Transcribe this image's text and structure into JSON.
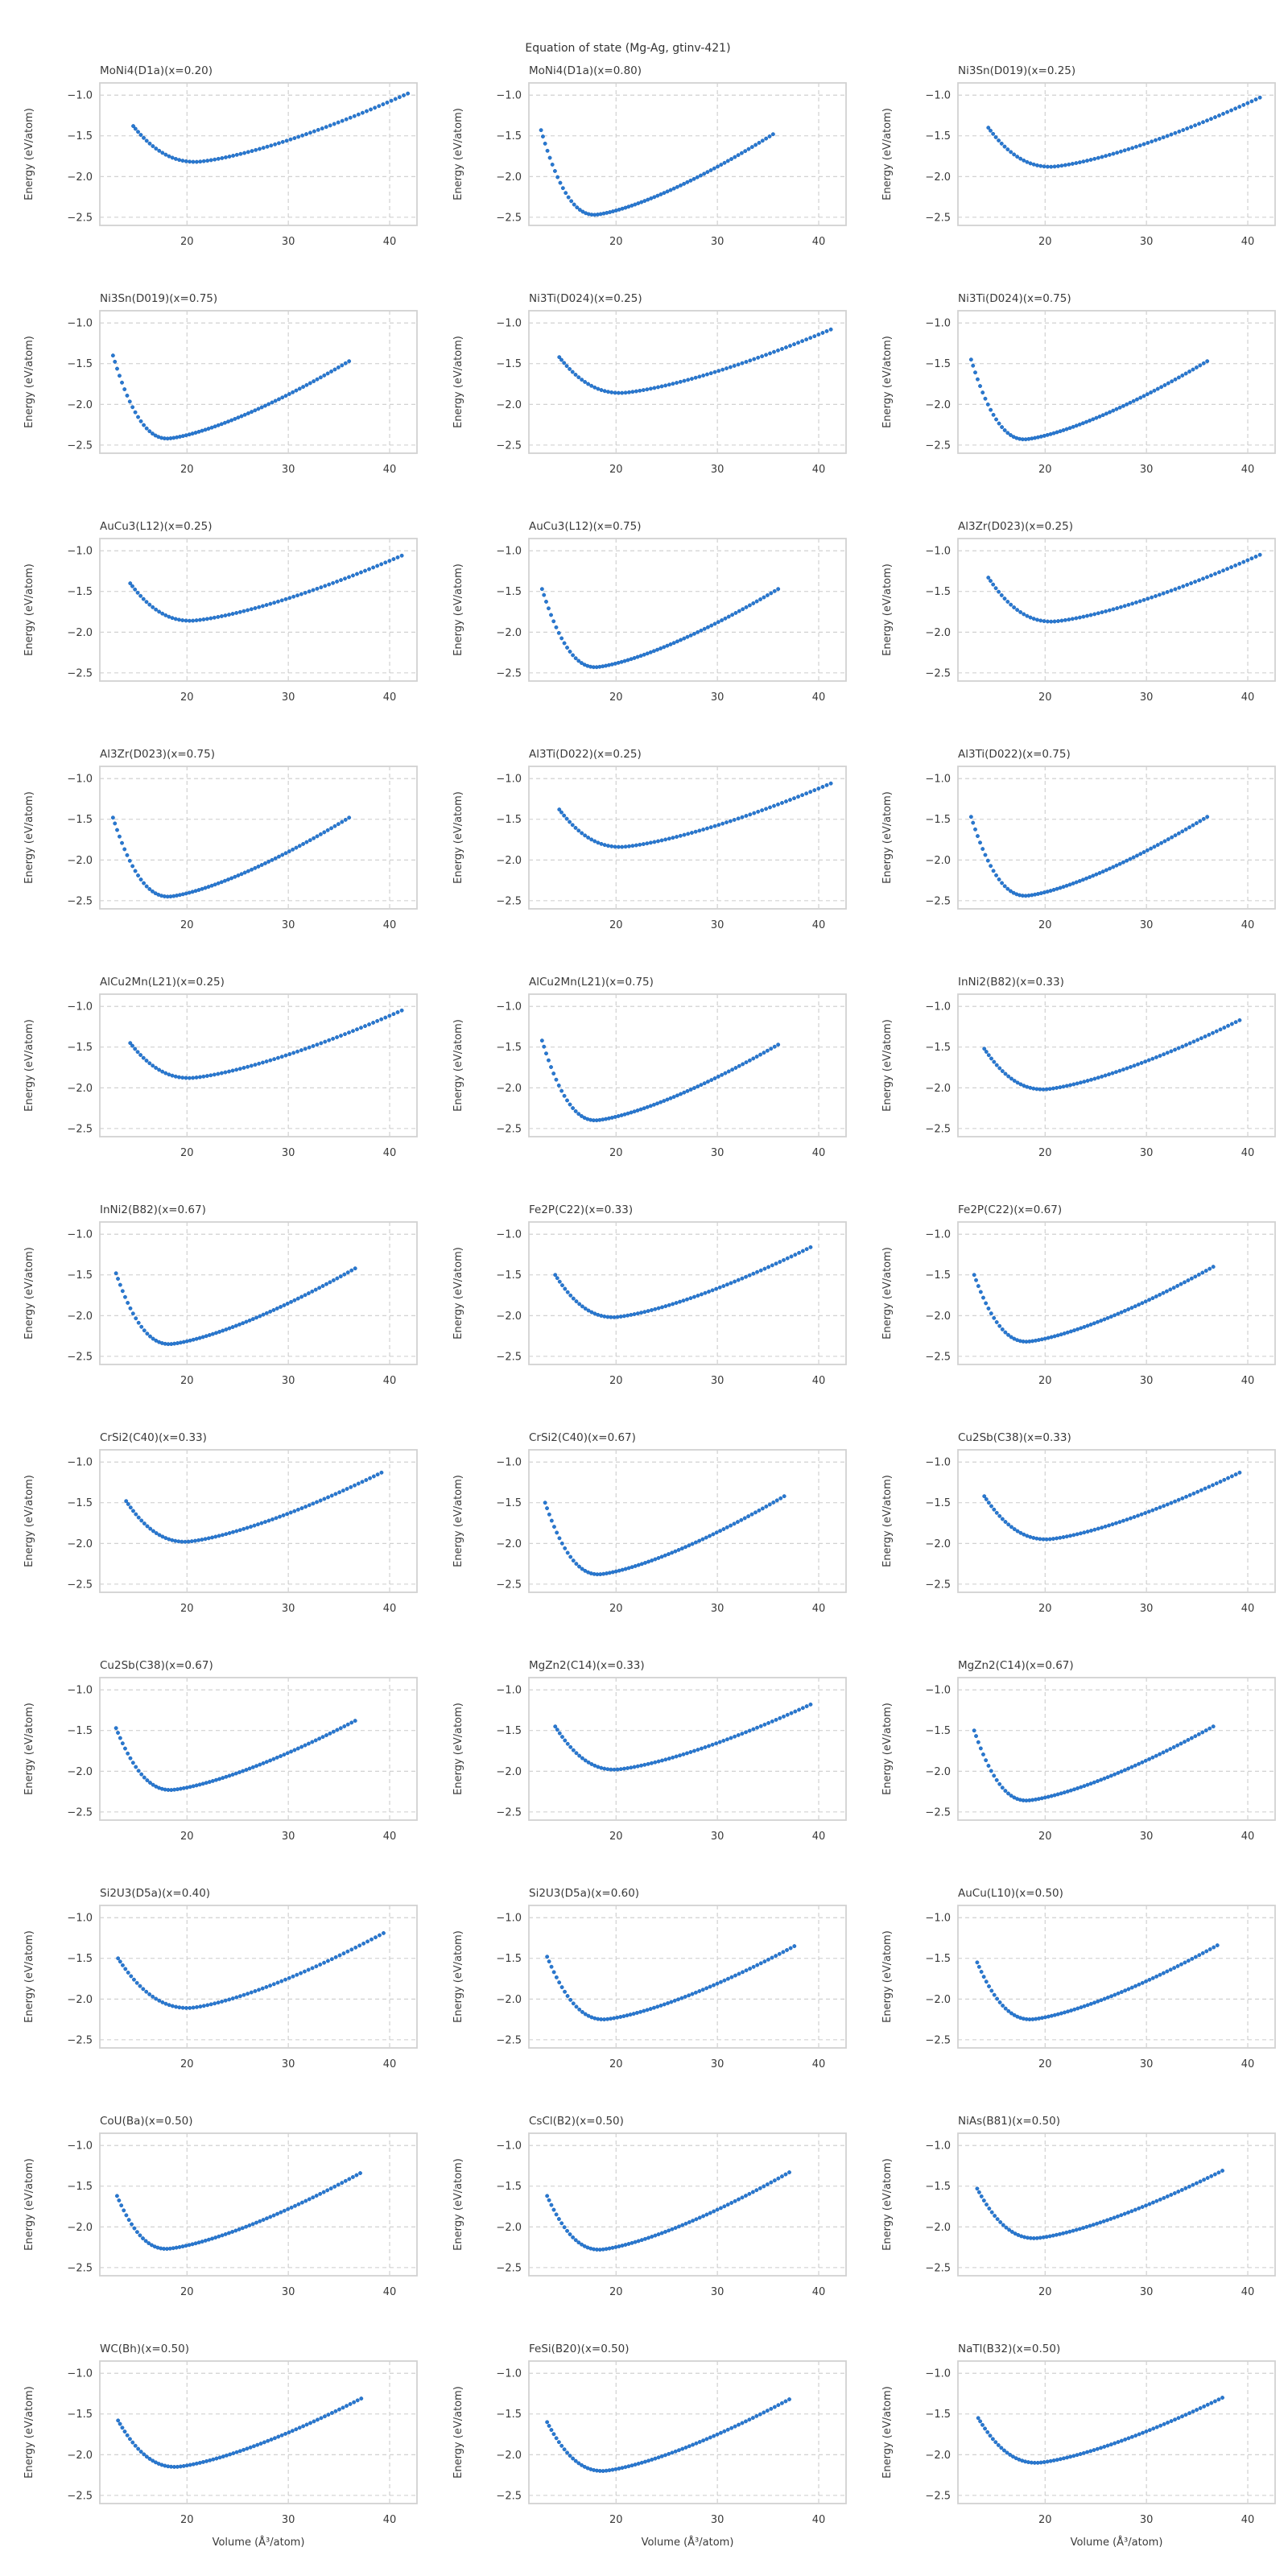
{
  "figure": {
    "suptitle": "Equation of state (Mg-Ag, gtinv-421)",
    "xlabel": "Volume (Å³/atom)",
    "ylabel": "Energy (eV/atom)"
  },
  "axis": {
    "xlim": [
      11.4,
      42.7
    ],
    "ylim": [
      -2.6,
      -0.85
    ],
    "xticks": [
      20,
      30,
      40
    ],
    "yticks": [
      -1.0,
      -1.5,
      -2.0,
      -2.5
    ],
    "xtick_labels": [
      "20",
      "30",
      "40"
    ],
    "ytick_labels": [
      "−1.0",
      "−1.5",
      "−2.0",
      "−2.5"
    ],
    "grid": "dashed",
    "grid_color": "#cccccc",
    "spine_color": "#d2d2d2",
    "marker_color": "#2878d0",
    "marker_edge_color": "#1f65b8",
    "text_color": "#3a3a3a"
  },
  "chart_data": {
    "type": "scatter",
    "title": "Equation of state (Mg-Ag, gtinv-421)",
    "xlabel": "Volume (Å³/atom)",
    "ylabel": "Energy (eV/atom)",
    "layout": {
      "rows": 11,
      "cols": 3,
      "shared_axes": true,
      "xlabel_bottom_row_only": true
    },
    "n_points_per_curve": 75,
    "subplots": [
      {
        "title": "MoNi4(D1a)(x=0.20)",
        "start": [
          14.7,
          -1.38
        ],
        "min": [
          20.9,
          -1.82
        ],
        "end": [
          41.8,
          -0.98
        ]
      },
      {
        "title": "MoNi4(D1a)(x=0.80)",
        "start": [
          12.6,
          -1.43
        ],
        "min": [
          17.9,
          -2.47
        ],
        "end": [
          35.5,
          -1.48
        ]
      },
      {
        "title": "Ni3Sn(D019)(x=0.25)",
        "start": [
          14.4,
          -1.4
        ],
        "min": [
          20.6,
          -1.88
        ],
        "end": [
          41.2,
          -1.03
        ]
      },
      {
        "title": "Ni3Sn(D019)(x=0.75)",
        "start": [
          12.7,
          -1.4
        ],
        "min": [
          18.1,
          -2.42
        ],
        "end": [
          36.0,
          -1.47
        ]
      },
      {
        "title": "Ni3Ti(D024)(x=0.25)",
        "start": [
          14.4,
          -1.42
        ],
        "min": [
          20.5,
          -1.86
        ],
        "end": [
          41.2,
          -1.08
        ]
      },
      {
        "title": "Ni3Ti(D024)(x=0.75)",
        "start": [
          12.7,
          -1.45
        ],
        "min": [
          18.0,
          -2.43
        ],
        "end": [
          36.0,
          -1.47
        ]
      },
      {
        "title": "AuCu3(L12)(x=0.25)",
        "start": [
          14.4,
          -1.4
        ],
        "min": [
          20.4,
          -1.86
        ],
        "end": [
          41.2,
          -1.06
        ]
      },
      {
        "title": "AuCu3(L12)(x=0.75)",
        "start": [
          12.7,
          -1.47
        ],
        "min": [
          18.0,
          -2.43
        ],
        "end": [
          36.0,
          -1.47
        ]
      },
      {
        "title": "Al3Zr(D023)(x=0.25)",
        "start": [
          14.4,
          -1.33
        ],
        "min": [
          20.7,
          -1.87
        ],
        "end": [
          41.2,
          -1.05
        ]
      },
      {
        "title": "Al3Zr(D023)(x=0.75)",
        "start": [
          12.7,
          -1.48
        ],
        "min": [
          18.2,
          -2.45
        ],
        "end": [
          36.0,
          -1.48
        ]
      },
      {
        "title": "Al3Ti(D022)(x=0.25)",
        "start": [
          14.4,
          -1.38
        ],
        "min": [
          20.5,
          -1.84
        ],
        "end": [
          41.2,
          -1.06
        ]
      },
      {
        "title": "Al3Ti(D022)(x=0.75)",
        "start": [
          12.7,
          -1.47
        ],
        "min": [
          18.1,
          -2.44
        ],
        "end": [
          36.0,
          -1.47
        ]
      },
      {
        "title": "AlCu2Mn(L21)(x=0.25)",
        "start": [
          14.4,
          -1.45
        ],
        "min": [
          20.3,
          -1.88
        ],
        "end": [
          41.2,
          -1.05
        ]
      },
      {
        "title": "AlCu2Mn(L21)(x=0.75)",
        "start": [
          12.7,
          -1.42
        ],
        "min": [
          18.0,
          -2.4
        ],
        "end": [
          36.0,
          -1.47
        ]
      },
      {
        "title": "InNi2(B82)(x=0.33)",
        "start": [
          14.0,
          -1.52
        ],
        "min": [
          19.9,
          -2.02
        ],
        "end": [
          39.2,
          -1.17
        ]
      },
      {
        "title": "InNi2(B82)(x=0.67)",
        "start": [
          13.0,
          -1.48
        ],
        "min": [
          18.3,
          -2.35
        ],
        "end": [
          36.6,
          -1.42
        ]
      },
      {
        "title": "Fe2P(C22)(x=0.33)",
        "start": [
          14.0,
          -1.5
        ],
        "min": [
          19.8,
          -2.02
        ],
        "end": [
          39.2,
          -1.16
        ]
      },
      {
        "title": "Fe2P(C22)(x=0.67)",
        "start": [
          13.0,
          -1.5
        ],
        "min": [
          18.2,
          -2.32
        ],
        "end": [
          36.6,
          -1.4
        ]
      },
      {
        "title": "CrSi2(C40)(x=0.33)",
        "start": [
          14.0,
          -1.48
        ],
        "min": [
          19.9,
          -1.98
        ],
        "end": [
          39.2,
          -1.13
        ]
      },
      {
        "title": "CrSi2(C40)(x=0.67)",
        "start": [
          13.0,
          -1.5
        ],
        "min": [
          18.3,
          -2.38
        ],
        "end": [
          36.6,
          -1.42
        ]
      },
      {
        "title": "Cu2Sb(C38)(x=0.33)",
        "start": [
          14.0,
          -1.42
        ],
        "min": [
          20.2,
          -1.95
        ],
        "end": [
          39.2,
          -1.13
        ]
      },
      {
        "title": "Cu2Sb(C38)(x=0.67)",
        "start": [
          13.0,
          -1.47
        ],
        "min": [
          18.4,
          -2.23
        ],
        "end": [
          36.6,
          -1.38
        ]
      },
      {
        "title": "MgZn2(C14)(x=0.33)",
        "start": [
          14.0,
          -1.45
        ],
        "min": [
          19.9,
          -1.98
        ],
        "end": [
          39.2,
          -1.18
        ]
      },
      {
        "title": "MgZn2(C14)(x=0.67)",
        "start": [
          13.0,
          -1.5
        ],
        "min": [
          18.2,
          -2.36
        ],
        "end": [
          36.6,
          -1.45
        ]
      },
      {
        "title": "Si2U3(D5a)(x=0.40)",
        "start": [
          13.2,
          -1.5
        ],
        "min": [
          20.2,
          -2.11
        ],
        "end": [
          39.4,
          -1.19
        ]
      },
      {
        "title": "Si2U3(D5a)(x=0.60)",
        "start": [
          13.2,
          -1.48
        ],
        "min": [
          18.8,
          -2.25
        ],
        "end": [
          37.6,
          -1.35
        ]
      },
      {
        "title": "AuCu(L10)(x=0.50)",
        "start": [
          13.3,
          -1.55
        ],
        "min": [
          18.6,
          -2.25
        ],
        "end": [
          37.0,
          -1.34
        ]
      },
      {
        "title": "CoU(Ba)(x=0.50)",
        "start": [
          13.1,
          -1.62
        ],
        "min": [
          18.0,
          -2.27
        ],
        "end": [
          37.1,
          -1.34
        ]
      },
      {
        "title": "CsCl(B2)(x=0.50)",
        "start": [
          13.2,
          -1.62
        ],
        "min": [
          18.4,
          -2.28
        ],
        "end": [
          37.1,
          -1.33
        ]
      },
      {
        "title": "NiAs(B81)(x=0.50)",
        "start": [
          13.3,
          -1.53
        ],
        "min": [
          19.0,
          -2.14
        ],
        "end": [
          37.5,
          -1.31
        ]
      },
      {
        "title": "WC(Bh)(x=0.50)",
        "start": [
          13.2,
          -1.58
        ],
        "min": [
          18.9,
          -2.15
        ],
        "end": [
          37.2,
          -1.31
        ]
      },
      {
        "title": "FeSi(B20)(x=0.50)",
        "start": [
          13.2,
          -1.6
        ],
        "min": [
          18.7,
          -2.2
        ],
        "end": [
          37.1,
          -1.32
        ]
      },
      {
        "title": "NaTl(B32)(x=0.50)",
        "start": [
          13.4,
          -1.55
        ],
        "min": [
          19.2,
          -2.1
        ],
        "end": [
          37.5,
          -1.3
        ]
      }
    ]
  }
}
